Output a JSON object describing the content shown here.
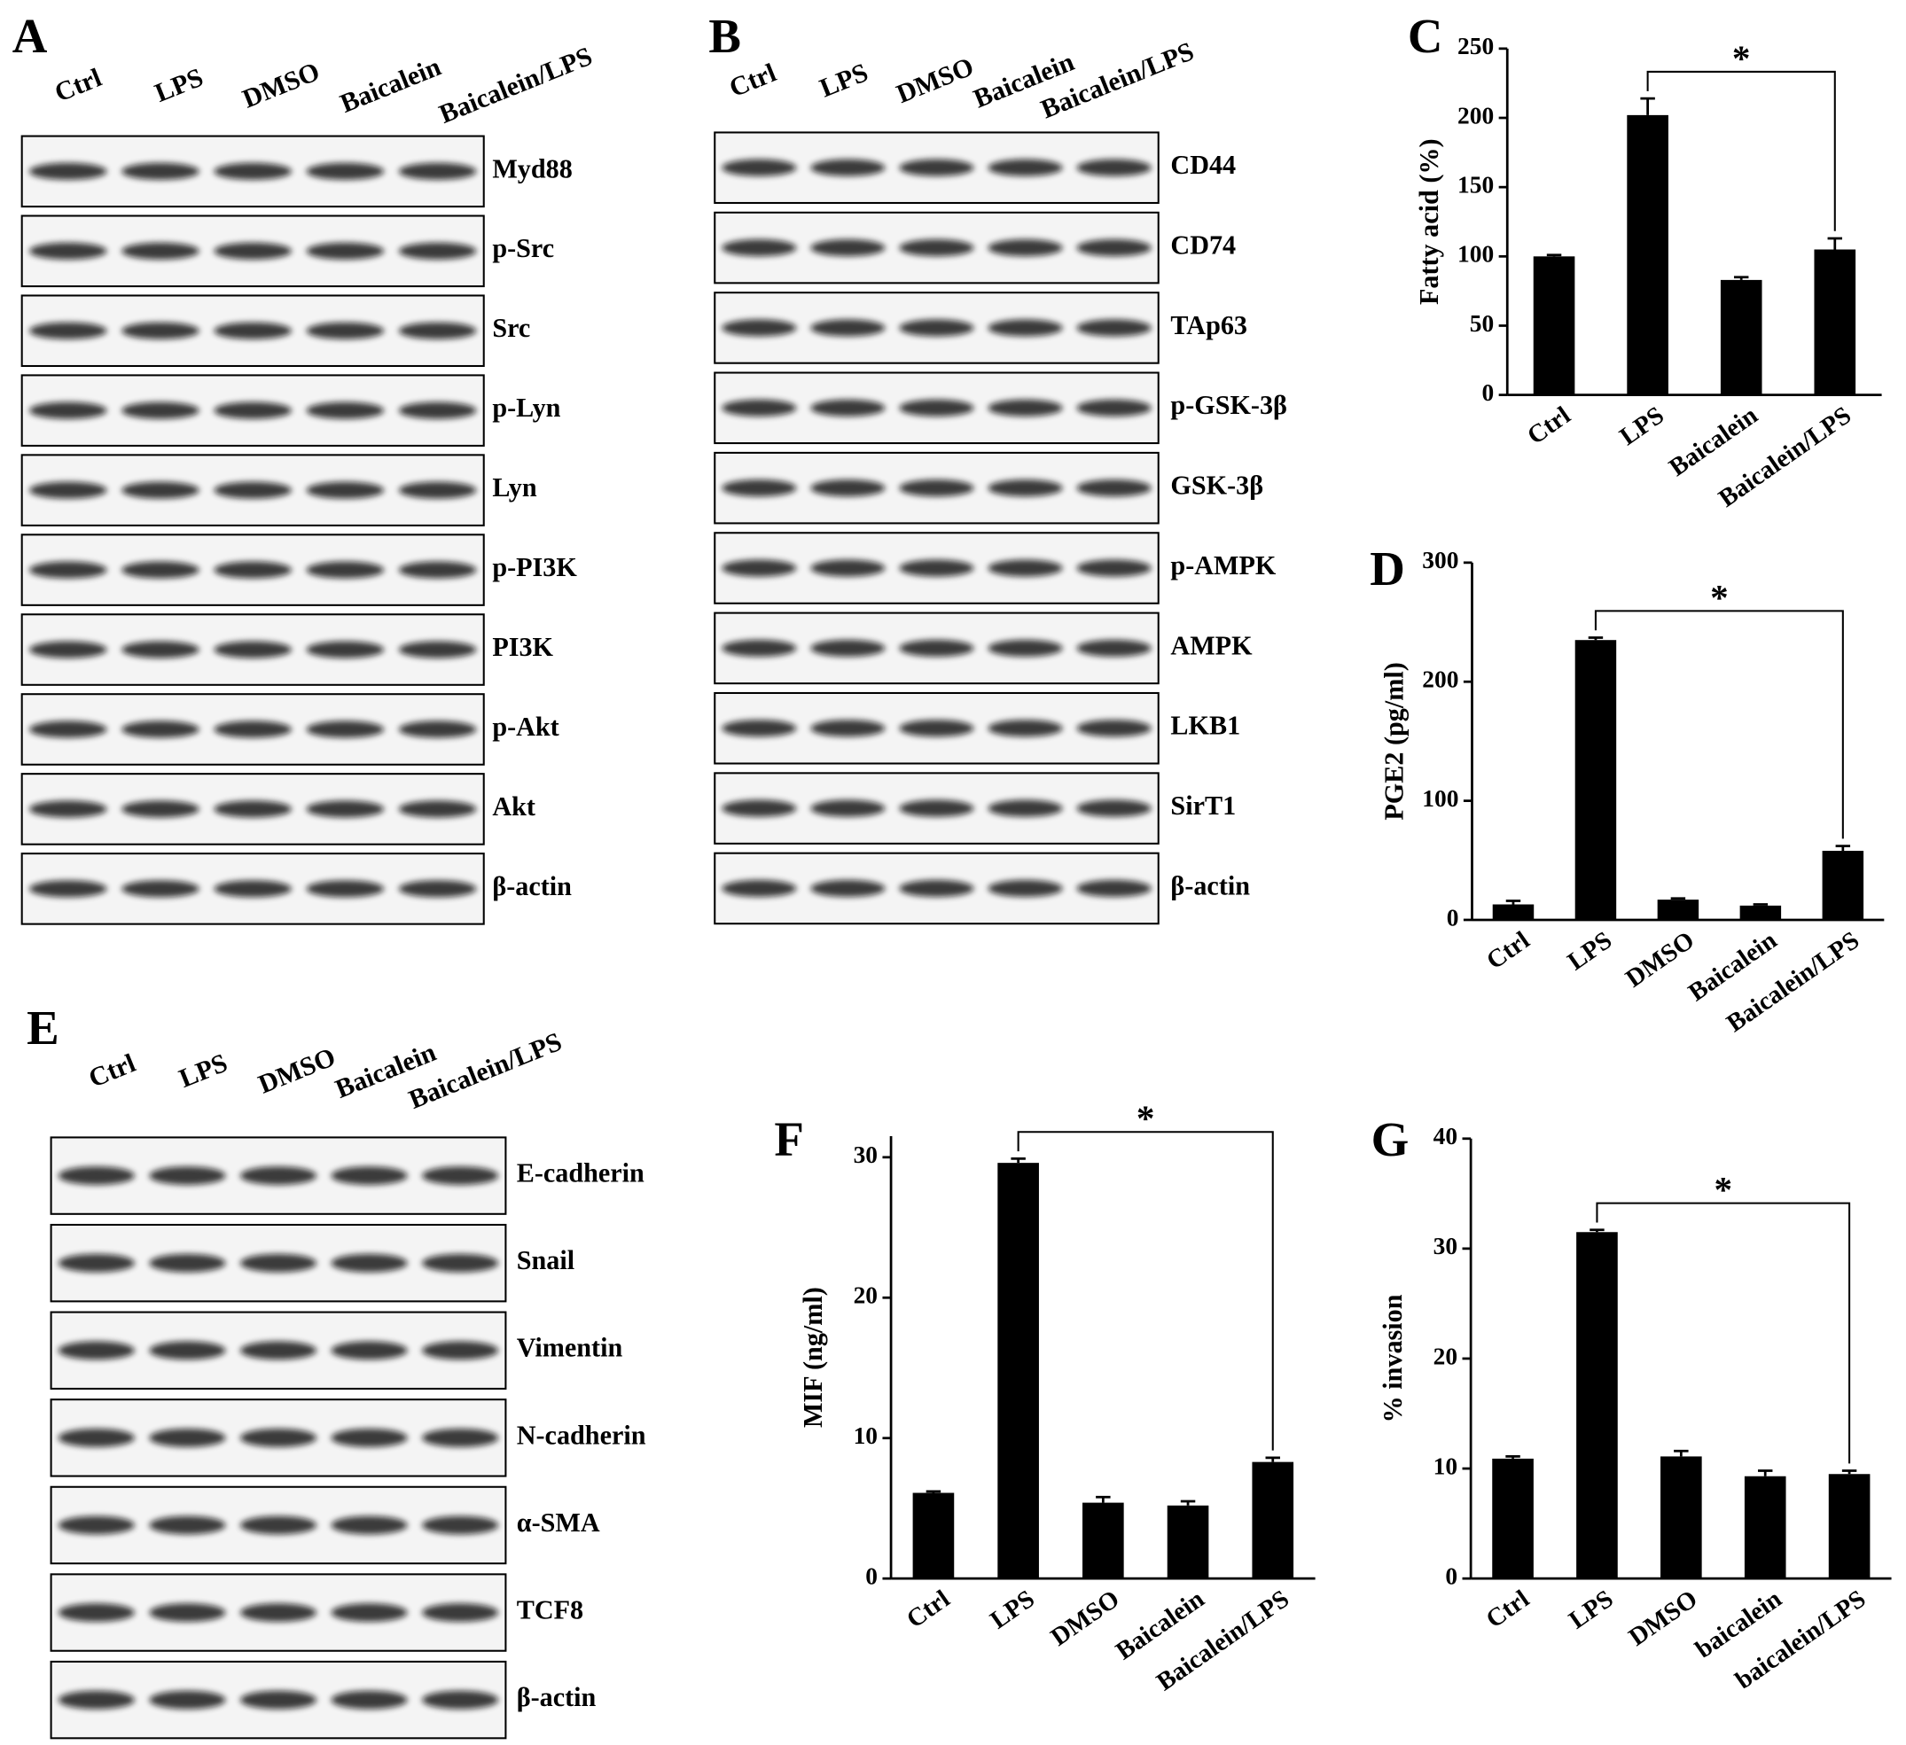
{
  "blots": [
    {
      "panel": "A",
      "lanes": [
        "Ctrl",
        "LPS",
        "DMSO",
        "Baicalein",
        "Baicalein/LPS"
      ],
      "proteins": [
        "Myd88",
        "p-Src",
        "Src",
        "p-Lyn",
        "Lyn",
        "p-PI3K",
        "PI3K",
        "p-Akt",
        "Akt",
        "β-actin"
      ]
    },
    {
      "panel": "B",
      "lanes": [
        "Ctrl",
        "LPS",
        "DMSO",
        "Baicalein",
        "Baicalein/LPS"
      ],
      "proteins": [
        "CD44",
        "CD74",
        "TAp63",
        "p-GSK-3β",
        "GSK-3β",
        "p-AMPK",
        "AMPK",
        "LKB1",
        "SirT1",
        "β-actin"
      ]
    },
    {
      "panel": "E",
      "lanes": [
        "Ctrl",
        "LPS",
        "DMSO",
        "Baicalein",
        "Baicalein/LPS"
      ],
      "proteins": [
        "E-cadherin",
        "Snail",
        "Vimentin",
        "N-cadherin",
        "α-SMA",
        "TCF8",
        "β-actin"
      ]
    }
  ],
  "chart_data": [
    {
      "type": "bar",
      "panel": "C",
      "y_label": "Fatty acid (%)",
      "categories": [
        "Ctrl",
        "LPS",
        "Baicalein",
        "Baicalein/LPS"
      ],
      "values": [
        100,
        202,
        83,
        105
      ],
      "errors": [
        1,
        12,
        2,
        8
      ],
      "color": "#000000",
      "ylim": [
        0,
        250
      ],
      "yticks": [
        0,
        50,
        100,
        150,
        200,
        250
      ],
      "annotation": "*"
    },
    {
      "type": "bar",
      "panel": "D",
      "y_label": "PGE2 (pg/ml)",
      "categories": [
        "Ctrl",
        "LPS",
        "DMSO",
        "Baicalein",
        "Baicalein/LPS"
      ],
      "values": [
        13,
        235,
        17,
        12,
        58
      ],
      "errors": [
        3,
        2,
        1,
        1,
        4
      ],
      "color": "#000000",
      "ylim": [
        0,
        300
      ],
      "yticks": [
        0,
        100,
        200,
        300
      ],
      "annotation": "*"
    },
    {
      "type": "bar",
      "panel": "F",
      "y_label": "MIF (ng/ml)",
      "categories": [
        "Ctrl",
        "LPS",
        "DMSO",
        "Baicalein",
        "Baicalein/LPS"
      ],
      "values": [
        6.1,
        29.6,
        5.4,
        5.2,
        8.3
      ],
      "errors": [
        0.1,
        0.3,
        0.4,
        0.3,
        0.3
      ],
      "color": "#000000",
      "ylim": [
        0,
        31.5
      ],
      "yticks": [
        0,
        10,
        20,
        30
      ],
      "annotation": "*"
    },
    {
      "type": "bar",
      "panel": "G",
      "y_label": "% invasion",
      "categories": [
        "Ctrl",
        "LPS",
        "DMSO",
        "baicalein",
        "baicalein/LPS"
      ],
      "values": [
        10.9,
        31.5,
        11.1,
        9.3,
        9.5
      ],
      "errors": [
        0.2,
        0.2,
        0.5,
        0.5,
        0.3
      ],
      "color": "#000000",
      "ylim": [
        0,
        40
      ],
      "yticks": [
        0,
        10,
        20,
        30,
        40
      ],
      "annotation": "*"
    }
  ]
}
